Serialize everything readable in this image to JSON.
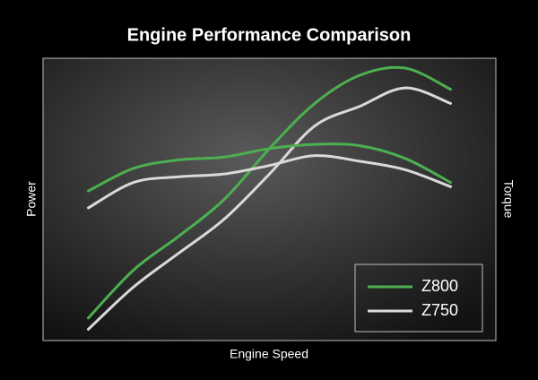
{
  "chart_data": {
    "type": "line",
    "title": "Engine Performance Comparison",
    "x_label": "Engine Speed",
    "y_label": "Power",
    "y2_label": "Torque",
    "x": [
      10,
      20,
      30,
      40,
      50,
      60,
      70,
      80,
      90
    ],
    "xlim": [
      0,
      100
    ],
    "ylim": [
      0,
      100
    ],
    "y2lim": [
      0,
      100
    ],
    "legend": "lower right",
    "series": [
      {
        "name": "Z800",
        "color": "#4caf50",
        "values": [
          8,
          25,
          37,
          50,
          68,
          84,
          94,
          96.5,
          89
        ]
      },
      {
        "name": "Z750",
        "color": "#d9d9d9",
        "values": [
          4,
          19,
          31,
          43,
          59,
          76,
          83,
          89.5,
          84
        ]
      },
      {
        "name": "Z800",
        "color": "#4caf50",
        "axis": "y2",
        "values": [
          53,
          61,
          64,
          65,
          68,
          69.5,
          69,
          64.5,
          56
        ]
      },
      {
        "name": "Z750",
        "color": "#d9d9d9",
        "axis": "y2",
        "values": [
          47,
          56,
          58,
          59,
          62,
          65.5,
          63.5,
          60.5,
          54.5
        ]
      }
    ]
  }
}
